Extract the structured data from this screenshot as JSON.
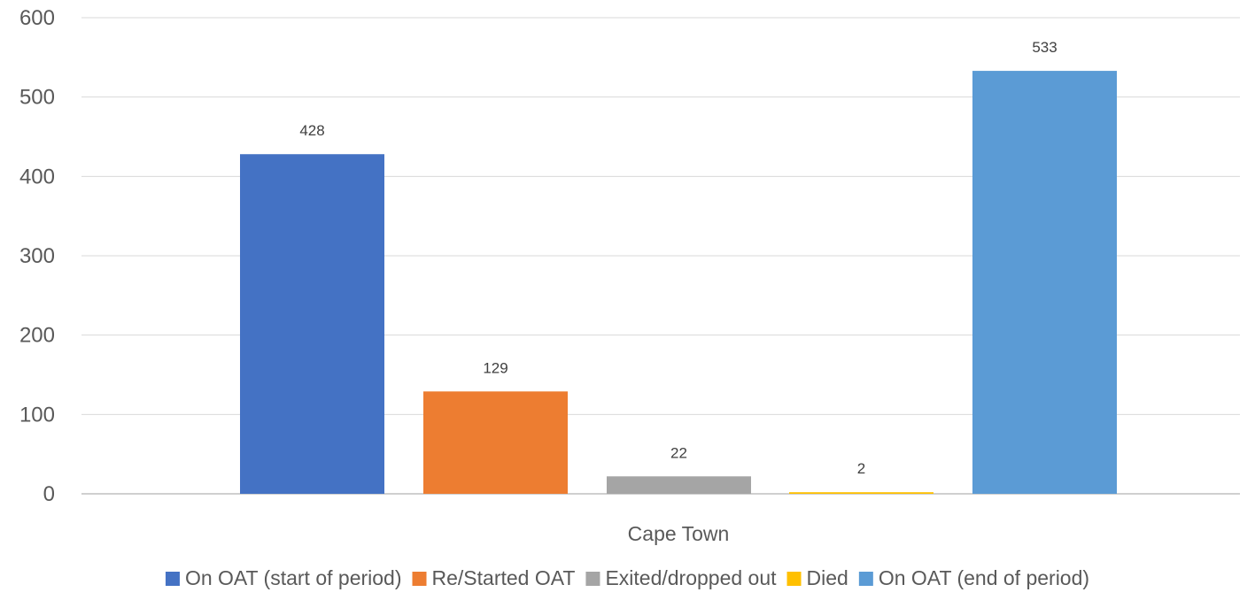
{
  "chart_data": {
    "type": "bar",
    "categories": [
      "Cape Town"
    ],
    "series": [
      {
        "name": "On OAT (start of period)",
        "values": [
          428
        ],
        "color": "#4472C4"
      },
      {
        "name": "Re/Started OAT",
        "values": [
          129
        ],
        "color": "#ED7D31"
      },
      {
        "name": "Exited/dropped out",
        "values": [
          22
        ],
        "color": "#A5A5A5"
      },
      {
        "name": "Died",
        "values": [
          2
        ],
        "color": "#FFC000"
      },
      {
        "name": "On OAT (end of period)",
        "values": [
          533
        ],
        "color": "#5B9BD5"
      }
    ],
    "title": "",
    "xlabel": "",
    "ylabel": "",
    "ylim": [
      0,
      600
    ],
    "yticks": [
      0,
      100,
      200,
      300,
      400,
      500,
      600
    ],
    "grid": true,
    "legend_position": "bottom",
    "data_labels": true
  }
}
